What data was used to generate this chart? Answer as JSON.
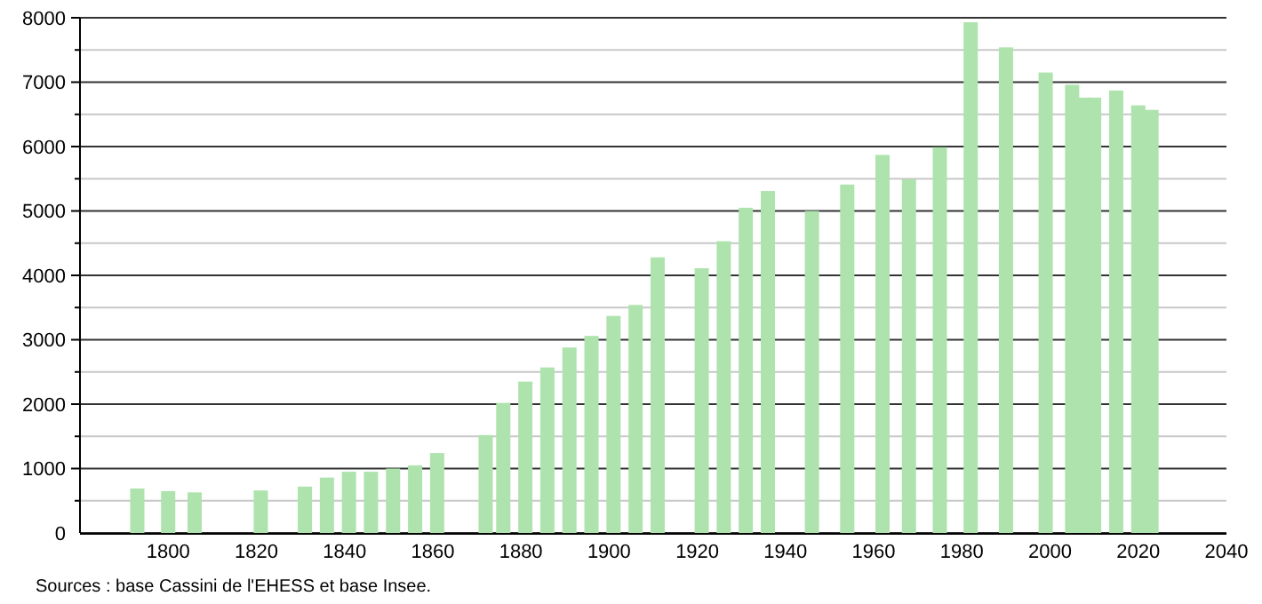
{
  "chart_data": {
    "type": "bar",
    "x": [
      1793,
      1800,
      1806,
      1821,
      1831,
      1836,
      1841,
      1846,
      1851,
      1856,
      1861,
      1872,
      1876,
      1881,
      1886,
      1891,
      1896,
      1901,
      1906,
      1911,
      1921,
      1926,
      1931,
      1936,
      1946,
      1954,
      1962,
      1968,
      1975,
      1982,
      1990,
      1999,
      2005,
      2008,
      2010,
      2015,
      2020,
      2023
    ],
    "values": [
      690,
      650,
      630,
      660,
      720,
      860,
      950,
      950,
      1000,
      1050,
      1240,
      1520,
      2020,
      2350,
      2570,
      2880,
      3060,
      3370,
      3540,
      4280,
      4110,
      4530,
      5050,
      5310,
      5000,
      5410,
      5870,
      5490,
      5990,
      7930,
      7540,
      7150,
      6960,
      6760,
      6760,
      6870,
      6640,
      6570
    ],
    "color": "#aee3ae",
    "xlim": [
      1780,
      2040
    ],
    "xticks": [
      1800,
      1820,
      1840,
      1860,
      1880,
      1900,
      1920,
      1940,
      1960,
      1980,
      2000,
      2020,
      2040
    ],
    "ylim": [
      0,
      8000
    ],
    "yticks": [
      0,
      {
        "value": 500,
        "label": null
      },
      1000,
      {
        "value": 1500,
        "label": null
      },
      2000,
      {
        "value": 2500,
        "label": null
      },
      3000,
      {
        "value": 3500,
        "label": null
      },
      4000,
      {
        "value": 4500,
        "label": null
      },
      5000,
      {
        "value": 5500,
        "label": null
      },
      6000,
      {
        "value": 6500,
        "label": null
      },
      7000,
      {
        "value": 7500,
        "label": null
      },
      8000
    ],
    "grid": true,
    "annotations": [
      "Sources : base Cassini de l'EHESS et base Insee."
    ]
  }
}
